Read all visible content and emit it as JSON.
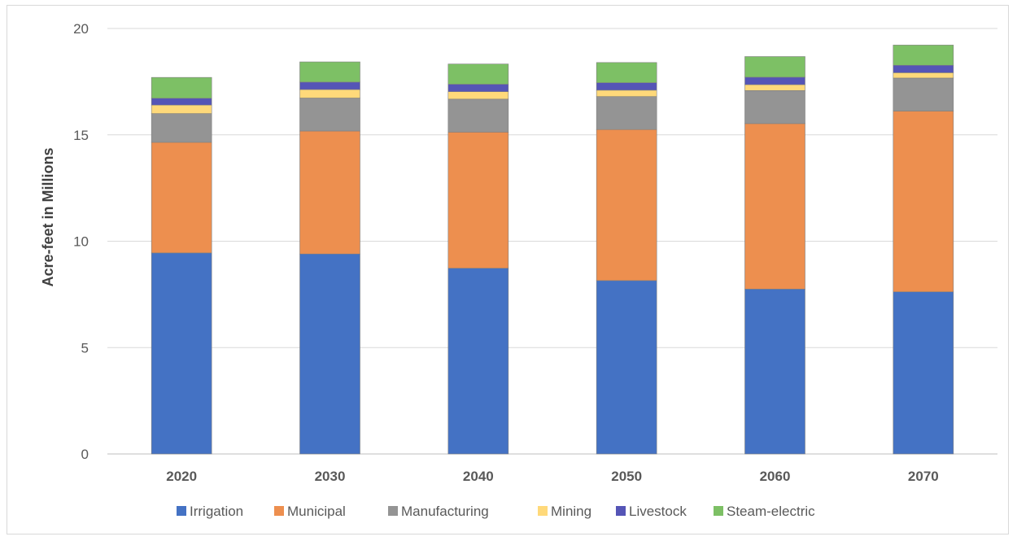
{
  "chart_data": {
    "type": "bar",
    "stacked": true,
    "ylabel": "Acre-feet in Millions",
    "xlabel": "",
    "title": "",
    "ylim": [
      0,
      20
    ],
    "yticks": [
      0,
      5,
      10,
      15,
      20
    ],
    "grid": true,
    "legend_position": "bottom",
    "categories": [
      "2020",
      "2030",
      "2040",
      "2050",
      "2060",
      "2070"
    ],
    "series": [
      {
        "name": "Irrigation",
        "color": "#4472c4",
        "values": [
          9.45,
          9.4,
          8.73,
          8.15,
          7.75,
          7.62
        ]
      },
      {
        "name": "Municipal",
        "color": "#ed8f4f",
        "values": [
          5.2,
          5.78,
          6.4,
          7.1,
          7.78,
          8.5
        ]
      },
      {
        "name": "Manufacturing",
        "color": "#949494",
        "values": [
          1.35,
          1.55,
          1.55,
          1.55,
          1.55,
          1.55
        ]
      },
      {
        "name": "Mining",
        "color": "#ffd97a",
        "values": [
          0.4,
          0.4,
          0.35,
          0.3,
          0.28,
          0.25
        ]
      },
      {
        "name": "Livestock",
        "color": "#5555b6",
        "values": [
          0.32,
          0.35,
          0.35,
          0.35,
          0.35,
          0.35
        ]
      },
      {
        "name": "Steam-electric",
        "color": "#7dc065",
        "values": [
          0.98,
          0.95,
          0.95,
          0.95,
          0.97,
          0.95
        ]
      }
    ]
  }
}
